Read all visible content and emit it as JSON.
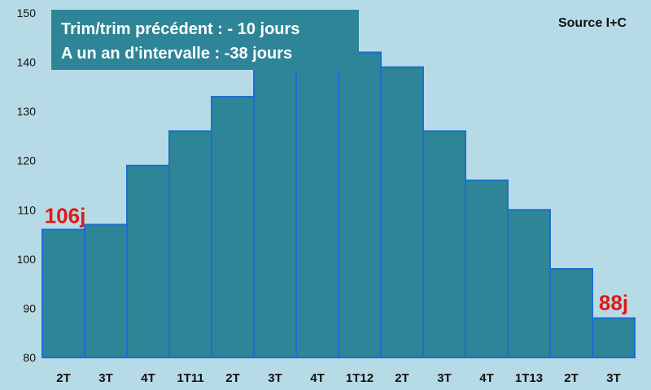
{
  "info": {
    "line1": "Trim/trim précédent : - 10 jours",
    "line2": "A un an d'intervalle : -38 jours"
  },
  "source": "Source I+C",
  "callouts": {
    "first": "106j",
    "last": "88j"
  },
  "colors": {
    "background": "#b7dbe6",
    "bar": "#2e8597",
    "bar_stroke": "#1a6fd0",
    "infobox": "#2e8597",
    "callout": "#e01818"
  },
  "chart_data": {
    "type": "bar",
    "categories": [
      "2T",
      "3T",
      "4T",
      "1T11",
      "2T",
      "3T",
      "4T",
      "1T12",
      "2T",
      "3T",
      "4T",
      "1T13",
      "2T",
      "3T"
    ],
    "values": [
      106,
      107,
      119,
      126,
      133,
      140,
      141,
      142,
      139,
      126,
      116,
      110,
      98,
      88
    ],
    "ylim": [
      80,
      150
    ],
    "yticks": [
      80,
      90,
      100,
      110,
      120,
      130,
      140,
      150
    ],
    "title": "",
    "xlabel": "",
    "ylabel": ""
  }
}
